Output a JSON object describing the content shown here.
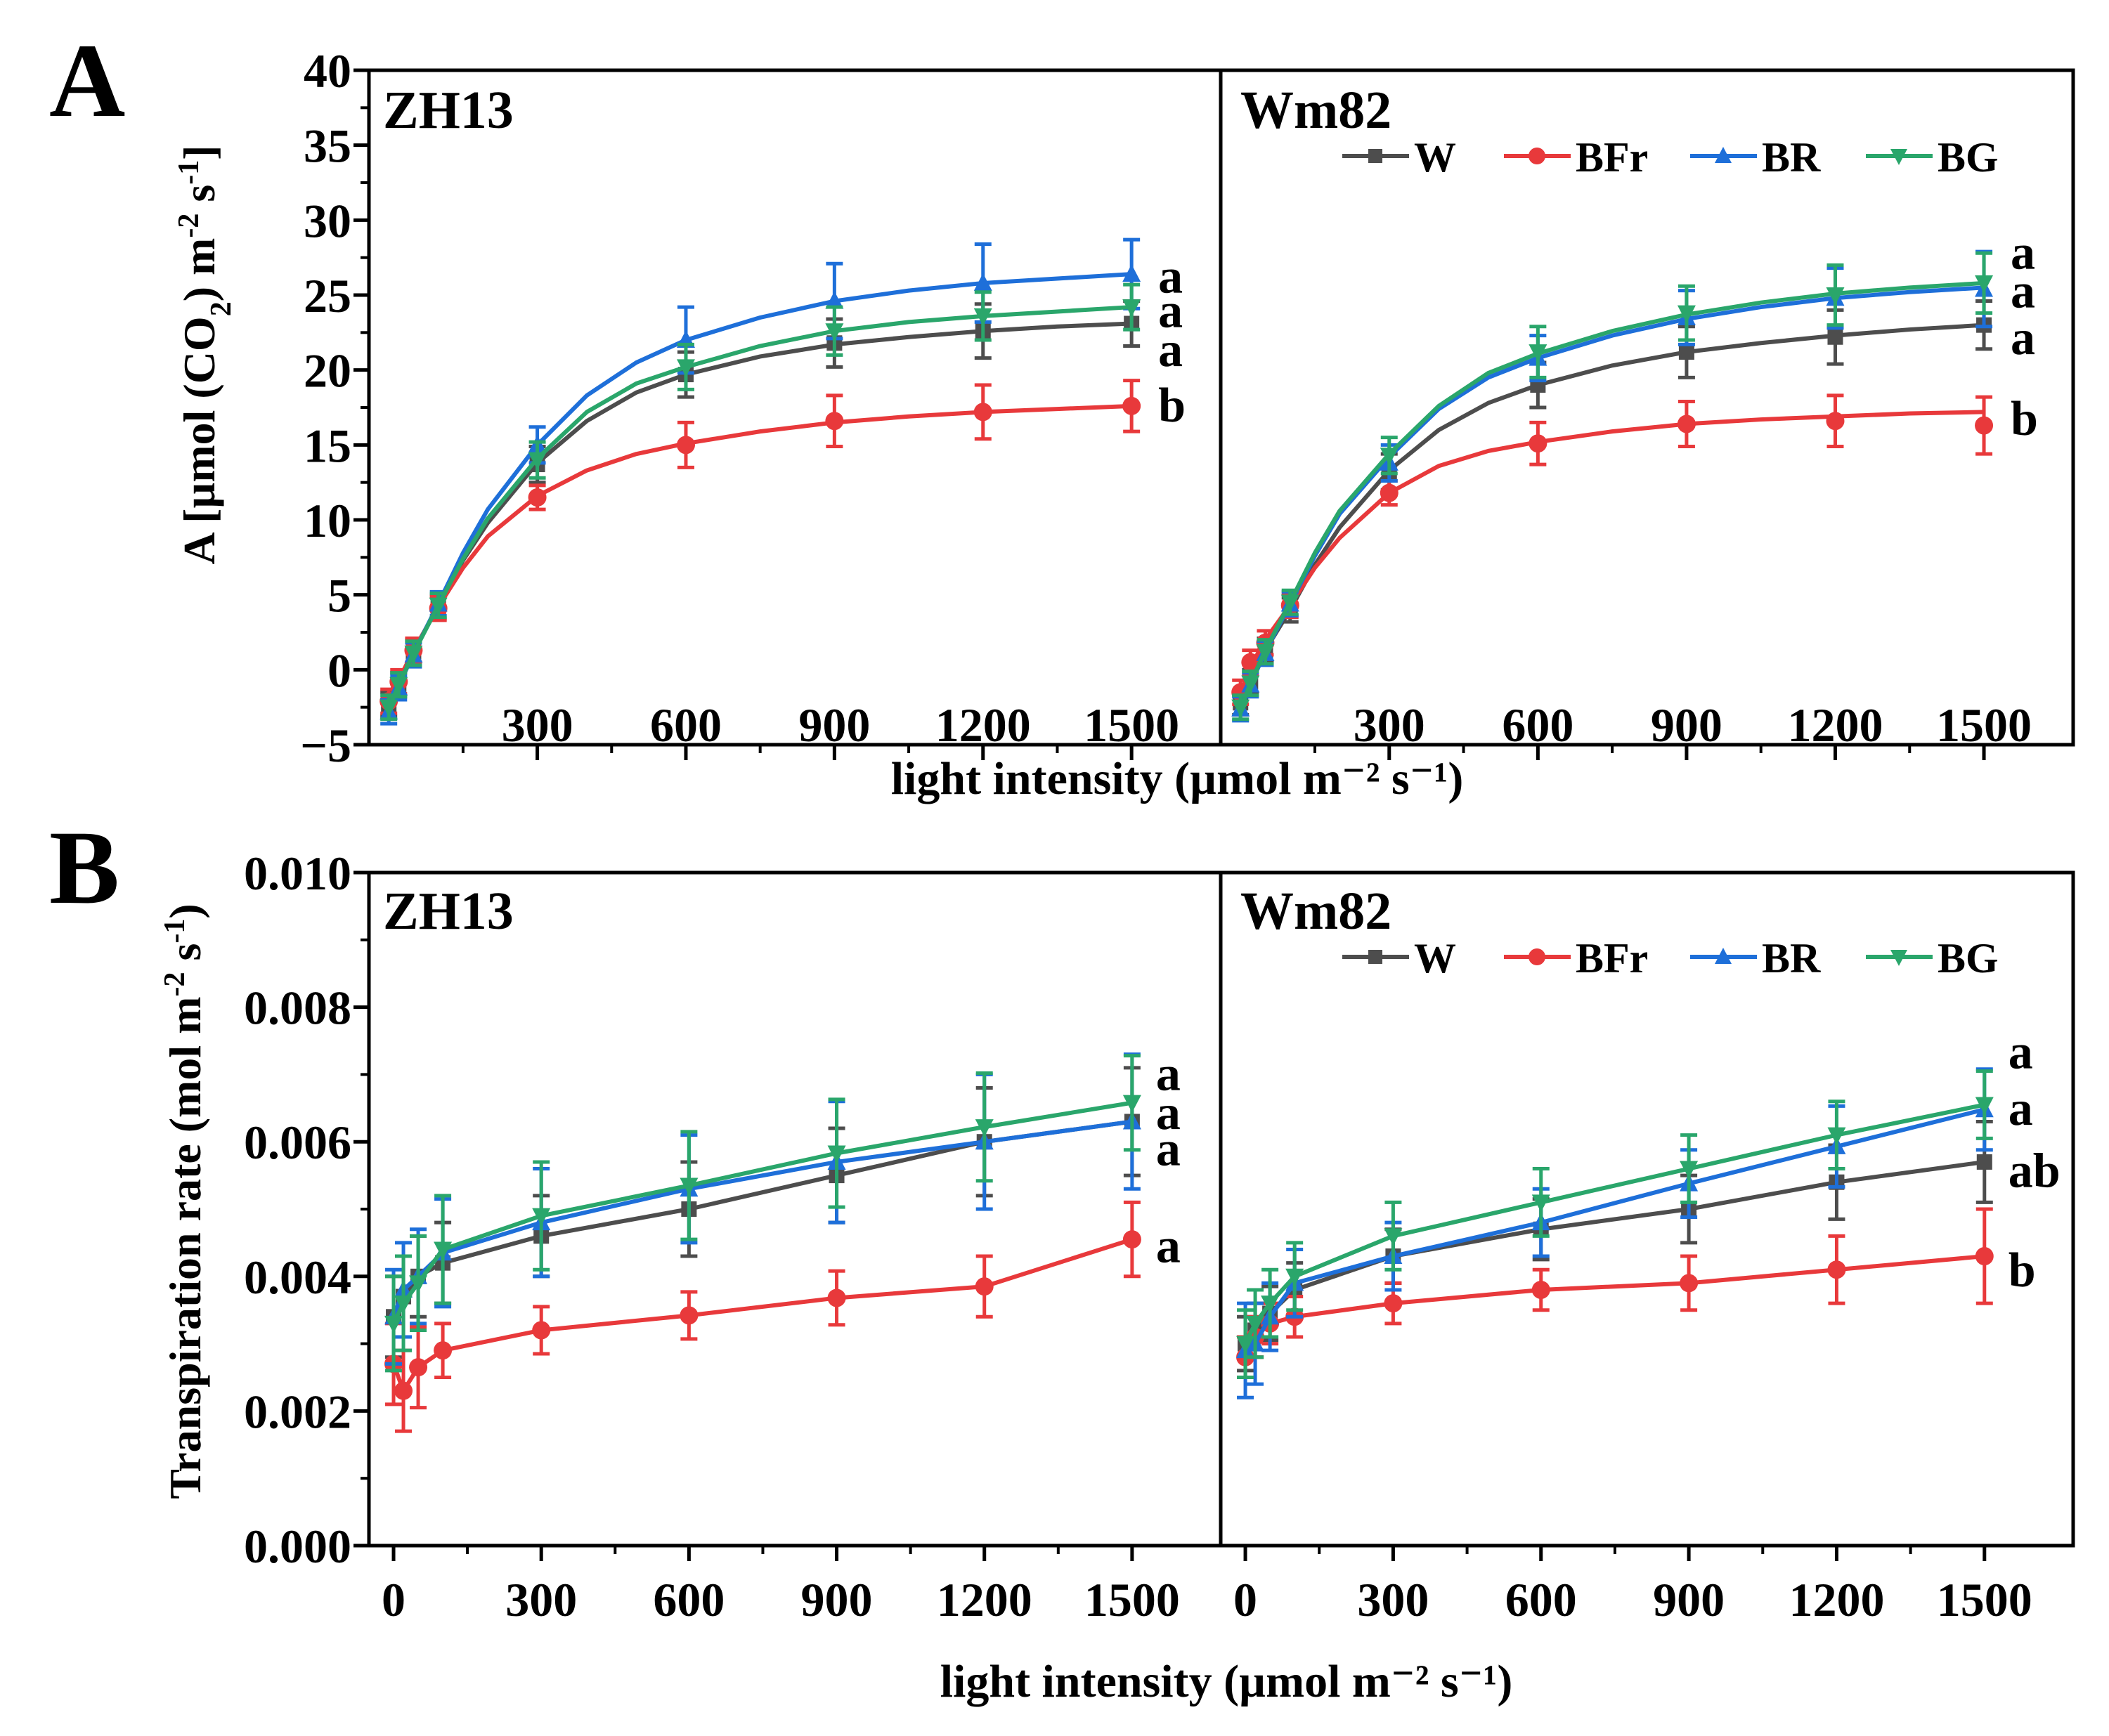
{
  "figure": {
    "colors": {
      "W": "#4d4d4d",
      "BFr": "#e8393b",
      "BR": "#1e6fd9",
      "BG": "#2aa66b",
      "axis": "#000000"
    },
    "markers": {
      "W": "square",
      "BFr": "circle",
      "BR": "triangle-up",
      "BG": "triangle-down"
    },
    "legend": [
      "W",
      "BFr",
      "BR",
      "BG"
    ]
  },
  "panelA": {
    "label": "A",
    "ylabel_parts": [
      "A [µmol (CO",
      "2",
      ") m",
      "-2",
      " s",
      "-1",
      "]"
    ],
    "xlabel": "light intensity (µmol m⁻² s⁻¹)",
    "ylim": [
      -5,
      40
    ],
    "yticks": [
      -5,
      0,
      5,
      10,
      15,
      20,
      25,
      30,
      35,
      40
    ],
    "ytick_labels": [
      "−5",
      "0",
      "5",
      "10",
      "15",
      "20",
      "25",
      "30",
      "35",
      "40"
    ],
    "xticks": [
      300,
      600,
      900,
      1200,
      1500
    ],
    "xtick_labels": [
      "300",
      "600",
      "900",
      "1200",
      "1500"
    ],
    "subpanels": [
      {
        "title": "ZH13",
        "letters": [
          {
            "text": "a",
            "value": 26.2
          },
          {
            "text": "a",
            "value": 23.9
          },
          {
            "text": "a",
            "value": 21.3
          },
          {
            "text": "b",
            "value": 17.6
          }
        ]
      },
      {
        "title": "Wm82",
        "letters": [
          {
            "text": "a",
            "value": 27.8
          },
          {
            "text": "a",
            "value": 25.2
          },
          {
            "text": "a",
            "value": 22.1
          },
          {
            "text": "b",
            "value": 16.7
          }
        ]
      }
    ]
  },
  "panelB": {
    "label": "B",
    "ylabel_parts": [
      "Transpiration rate (mol m",
      "-2",
      " s",
      "-1",
      ")"
    ],
    "xlabel": "light intensity (µmol m⁻² s⁻¹)",
    "ylim": [
      0,
      0.01
    ],
    "yticks": [
      0,
      0.002,
      0.004,
      0.006,
      0.008,
      0.01
    ],
    "ytick_labels": [
      "0.000",
      "0.002",
      "0.004",
      "0.006",
      "0.008",
      "0.010"
    ],
    "xticks": [
      0,
      300,
      600,
      900,
      1200,
      1500
    ],
    "xtick_labels": [
      "0",
      "300",
      "600",
      "900",
      "1200",
      "1500"
    ],
    "subpanels": [
      {
        "title": "ZH13",
        "letters": [
          {
            "text": "a",
            "value": 0.007
          },
          {
            "text": "a",
            "value": 0.00642
          },
          {
            "text": "a",
            "value": 0.00588
          },
          {
            "text": "a",
            "value": 0.00444
          }
        ]
      },
      {
        "title": "Wm82",
        "letters": [
          {
            "text": "a",
            "value": 0.00732
          },
          {
            "text": "a",
            "value": 0.00648
          },
          {
            "text": "ab",
            "value": 0.00556
          },
          {
            "text": "b",
            "value": 0.00408
          }
        ]
      }
    ]
  },
  "chart_data": [
    {
      "type": "line",
      "panel": "A",
      "subpanel": "ZH13",
      "xlabel": "light intensity (µmol m⁻² s⁻¹)",
      "ylabel": "A [µmol (CO2) m-2 s-1]",
      "xlim": [
        -40,
        1680
      ],
      "ylim": [
        -5,
        40
      ],
      "x_points": [
        0,
        20,
        50,
        100,
        300,
        600,
        900,
        1200,
        1500
      ],
      "x_curve": [
        0,
        20,
        50,
        100,
        150,
        200,
        300,
        400,
        500,
        600,
        750,
        900,
        1050,
        1200,
        1350,
        1500
      ],
      "series": [
        {
          "name": "W",
          "values": [
            -2.3,
            -1.0,
            1.2,
            4.2,
            13.7,
            19.7,
            21.8,
            22.6,
            23.1
          ],
          "errors": [
            0.8,
            0.8,
            0.8,
            0.8,
            1.2,
            1.5,
            1.6,
            1.8,
            1.5
          ],
          "curve": [
            -2.4,
            -0.9,
            1.2,
            4.3,
            7.3,
            9.8,
            13.8,
            16.6,
            18.5,
            19.7,
            20.9,
            21.7,
            22.2,
            22.6,
            22.9,
            23.1
          ]
        },
        {
          "name": "BFr",
          "values": [
            -2.1,
            -0.8,
            1.3,
            4.1,
            11.5,
            15.0,
            16.6,
            17.2,
            17.6
          ],
          "errors": [
            0.8,
            0.8,
            0.8,
            0.8,
            0.8,
            1.5,
            1.7,
            1.8,
            1.7
          ],
          "curve": [
            -2.1,
            -0.7,
            1.3,
            4.2,
            6.8,
            8.9,
            11.6,
            13.3,
            14.4,
            15.1,
            15.9,
            16.5,
            16.9,
            17.2,
            17.4,
            17.6
          ]
        },
        {
          "name": "BR",
          "values": [
            -2.8,
            -1.2,
            1.0,
            4.4,
            15.0,
            22.0,
            24.6,
            25.8,
            26.4
          ],
          "errors": [
            0.8,
            0.8,
            0.8,
            0.8,
            1.2,
            2.2,
            2.5,
            2.6,
            2.3
          ],
          "curve": [
            -2.9,
            -1.1,
            1.1,
            4.4,
            7.8,
            10.7,
            15.0,
            18.3,
            20.5,
            22.0,
            23.5,
            24.6,
            25.3,
            25.8,
            26.1,
            26.4
          ]
        },
        {
          "name": "BG",
          "values": [
            -2.5,
            -1.0,
            1.1,
            4.3,
            14.0,
            20.2,
            22.6,
            23.6,
            24.2
          ],
          "errors": [
            0.8,
            0.8,
            0.8,
            0.8,
            1.2,
            1.5,
            1.6,
            1.6,
            1.5
          ],
          "curve": [
            -2.6,
            -1.0,
            1.1,
            4.3,
            7.4,
            10.1,
            14.1,
            17.2,
            19.1,
            20.2,
            21.6,
            22.6,
            23.2,
            23.6,
            23.9,
            24.2
          ]
        }
      ],
      "significance": [
        "a",
        "a",
        "a",
        "b"
      ]
    },
    {
      "type": "line",
      "panel": "A",
      "subpanel": "Wm82",
      "xlabel": "light intensity (µmol m⁻² s⁻¹)",
      "ylabel": "A [µmol (CO2) m-2 s-1]",
      "xlim": [
        -40,
        1680
      ],
      "ylim": [
        -5,
        40
      ],
      "x_points": [
        0,
        20,
        50,
        100,
        300,
        600,
        900,
        1200,
        1500
      ],
      "x_curve": [
        0,
        20,
        50,
        100,
        150,
        200,
        300,
        400,
        500,
        600,
        750,
        900,
        1050,
        1200,
        1350,
        1500
      ],
      "series": [
        {
          "name": "W",
          "values": [
            -2.2,
            -0.8,
            1.3,
            4.0,
            13.2,
            19.0,
            21.2,
            22.2,
            23.0
          ],
          "errors": [
            0.8,
            0.8,
            0.8,
            0.8,
            1.2,
            1.5,
            1.7,
            1.8,
            1.6
          ],
          "curve": [
            -2.3,
            -0.9,
            1.3,
            4.0,
            7.0,
            9.5,
            13.3,
            16.0,
            17.8,
            19.0,
            20.3,
            21.2,
            21.8,
            22.3,
            22.7,
            23.0
          ]
        },
        {
          "name": "BFr",
          "values": [
            -1.5,
            0.5,
            1.8,
            4.3,
            11.8,
            15.1,
            16.4,
            16.6,
            16.3
          ],
          "errors": [
            0.8,
            0.8,
            0.8,
            0.8,
            0.8,
            1.4,
            1.5,
            1.7,
            1.9
          ],
          "curve": [
            -1.6,
            0.2,
            2.0,
            4.3,
            6.8,
            8.8,
            11.8,
            13.6,
            14.6,
            15.2,
            15.9,
            16.4,
            16.7,
            16.9,
            17.1,
            17.2
          ]
        },
        {
          "name": "BR",
          "values": [
            -2.6,
            -1.0,
            1.1,
            4.4,
            13.8,
            20.8,
            23.5,
            24.8,
            25.4
          ],
          "errors": [
            0.8,
            0.8,
            0.8,
            0.8,
            1.2,
            1.5,
            1.8,
            2.0,
            2.5
          ],
          "curve": [
            -2.7,
            -1.0,
            1.2,
            4.4,
            7.6,
            10.4,
            14.2,
            17.4,
            19.5,
            20.8,
            22.3,
            23.4,
            24.2,
            24.8,
            25.2,
            25.5
          ]
        },
        {
          "name": "BG",
          "values": [
            -2.5,
            -0.9,
            1.2,
            4.5,
            14.3,
            21.2,
            23.8,
            25.0,
            25.8
          ],
          "errors": [
            0.8,
            0.8,
            0.8,
            0.8,
            1.2,
            1.7,
            1.8,
            2.0,
            2.0
          ],
          "curve": [
            -2.6,
            -0.9,
            1.3,
            4.5,
            7.8,
            10.6,
            14.4,
            17.6,
            19.8,
            21.1,
            22.6,
            23.7,
            24.5,
            25.1,
            25.5,
            25.8
          ]
        }
      ],
      "significance": [
        "a",
        "a",
        "a",
        "b"
      ]
    },
    {
      "type": "line",
      "panel": "B",
      "subpanel": "ZH13",
      "xlabel": "light intensity (µmol m⁻² s⁻¹)",
      "ylabel": "Transpiration rate (mol m-2 s-1)",
      "xlim": [
        -50,
        1680
      ],
      "ylim": [
        0,
        0.01
      ],
      "x_points": [
        0,
        20,
        50,
        100,
        300,
        600,
        900,
        1200,
        1500
      ],
      "series": [
        {
          "name": "W",
          "values": [
            0.0034,
            0.0037,
            0.004,
            0.0042,
            0.0046,
            0.005,
            0.0055,
            0.006,
            0.0063
          ],
          "errors": [
            0.0006,
            0.0006,
            0.0006,
            0.0006,
            0.0006,
            0.0007,
            0.0007,
            0.0008,
            0.0008
          ]
        },
        {
          "name": "BFr",
          "values": [
            0.0027,
            0.0023,
            0.00265,
            0.0029,
            0.0032,
            0.00342,
            0.00368,
            0.00385,
            0.00455
          ],
          "errors": [
            0.0006,
            0.0006,
            0.0006,
            0.0004,
            0.00035,
            0.00035,
            0.0004,
            0.00045,
            0.00055
          ]
        },
        {
          "name": "BR",
          "values": [
            0.0034,
            0.0038,
            0.004,
            0.00435,
            0.0048,
            0.0053,
            0.0057,
            0.006,
            0.0063
          ],
          "errors": [
            0.0007,
            0.0007,
            0.0007,
            0.0008,
            0.0008,
            0.0008,
            0.0009,
            0.001,
            0.001
          ]
        },
        {
          "name": "BG",
          "values": [
            0.0033,
            0.0036,
            0.0039,
            0.0044,
            0.0049,
            0.00535,
            0.00583,
            0.00622,
            0.00658
          ],
          "errors": [
            0.0007,
            0.0007,
            0.0007,
            0.0008,
            0.0008,
            0.0008,
            0.0008,
            0.0008,
            0.0007
          ]
        }
      ],
      "significance": [
        "a",
        "a",
        "a",
        "a"
      ]
    },
    {
      "type": "line",
      "panel": "B",
      "subpanel": "Wm82",
      "xlabel": "light intensity (µmol m⁻² s⁻¹)",
      "ylabel": "Transpiration rate (mol m-2 s-1)",
      "xlim": [
        -50,
        1680
      ],
      "ylim": [
        0,
        0.01
      ],
      "x_points": [
        0,
        20,
        50,
        100,
        300,
        600,
        900,
        1200,
        1500
      ],
      "series": [
        {
          "name": "W",
          "values": [
            0.003,
            0.0032,
            0.00345,
            0.0038,
            0.0043,
            0.0047,
            0.005,
            0.0054,
            0.0057
          ],
          "errors": [
            0.0004,
            0.0004,
            0.0004,
            0.0004,
            0.0004,
            0.00045,
            0.0005,
            0.00055,
            0.0006
          ]
        },
        {
          "name": "BFr",
          "values": [
            0.0028,
            0.0031,
            0.0033,
            0.0034,
            0.0036,
            0.0038,
            0.0039,
            0.0041,
            0.0043
          ],
          "errors": [
            0.0003,
            0.0003,
            0.0003,
            0.0003,
            0.0003,
            0.0003,
            0.0004,
            0.0005,
            0.0007
          ]
        },
        {
          "name": "BR",
          "values": [
            0.0029,
            0.003,
            0.0034,
            0.0039,
            0.0043,
            0.0048,
            0.00538,
            0.00593,
            0.00648
          ],
          "errors": [
            0.0007,
            0.0006,
            0.0005,
            0.0005,
            0.0005,
            0.0005,
            0.0005,
            0.0006,
            0.0006
          ]
        },
        {
          "name": "BG",
          "values": [
            0.003,
            0.0033,
            0.0036,
            0.004,
            0.0046,
            0.0051,
            0.0056,
            0.0061,
            0.00655
          ],
          "errors": [
            0.0005,
            0.0005,
            0.0005,
            0.0005,
            0.0005,
            0.0005,
            0.0005,
            0.0005,
            0.0005
          ]
        }
      ],
      "significance": [
        "a",
        "a",
        "ab",
        "b"
      ]
    }
  ]
}
